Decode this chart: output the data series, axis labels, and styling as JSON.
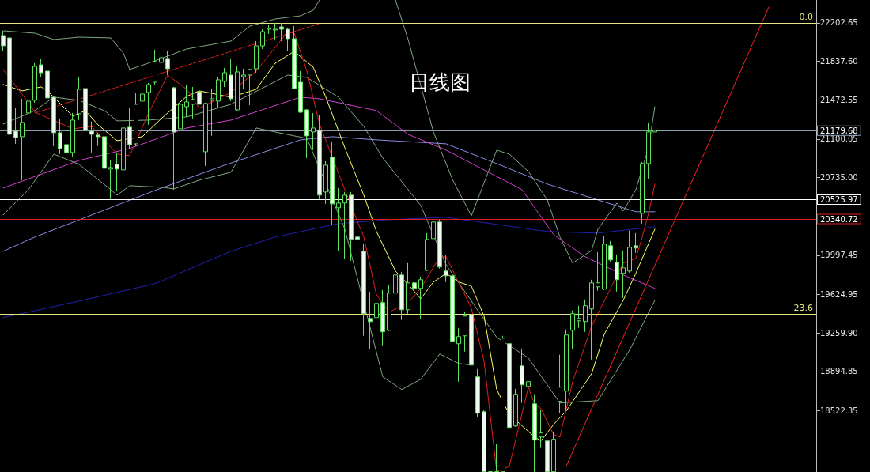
{
  "chart_data": {
    "type": "candlestick",
    "title": "日线图",
    "color": "#5fe35f",
    "tick_labels": "y",
    "categories": [
      null,
      null,
      null,
      null,
      null,
      null,
      null,
      null,
      null,
      null,
      null,
      null,
      null,
      null,
      null,
      null,
      null,
      null,
      null,
      null,
      null,
      null,
      null,
      null,
      null,
      null,
      null,
      null,
      null,
      null,
      null,
      null,
      null,
      null,
      null,
      null,
      null,
      null,
      null,
      null,
      null,
      null,
      null,
      null,
      null,
      null,
      null,
      null,
      null,
      null,
      null,
      null,
      null,
      null,
      null,
      null,
      null,
      null,
      null,
      null,
      null,
      null,
      null,
      null,
      null,
      null,
      null,
      null,
      null,
      null,
      null,
      null,
      null,
      null,
      null,
      null,
      null,
      null,
      null,
      null,
      null,
      null,
      null,
      null,
      null,
      null,
      null,
      null,
      null,
      null,
      null,
      null,
      null,
      null,
      null,
      null,
      null,
      null,
      null,
      null,
      null,
      null,
      null,
      null,
      null,
      null,
      null,
      null,
      null,
      null,
      null,
      null,
      null,
      null,
      null,
      null,
      null,
      null,
      null,
      null,
      null,
      null,
      null,
      null,
      null,
      null,
      null,
      null,
      null
    ],
    "ohlc": [
      [
        22082.5,
        22127.5,
        21932.5,
        21985
      ],
      [
        22060,
        22060,
        20995,
        21145
      ],
      [
        21175,
        21392.5,
        21055,
        21115
      ],
      [
        21122.5,
        21482.5,
        20710,
        21257.5
      ],
      [
        21347.5,
        21505,
        21197.5,
        21460
      ],
      [
        21467.5,
        21820,
        21445,
        21790
      ],
      [
        21805,
        21857.5,
        21685,
        21730
      ],
      [
        21745,
        21767.5,
        21272.5,
        21490
      ],
      [
        21497.5,
        21505,
        21032.5,
        21160
      ],
      [
        21160,
        21295,
        20957.5,
        21010
      ],
      [
        21047.5,
        21242.5,
        20770,
        20972.5
      ],
      [
        20972.5,
        21347.5,
        20935,
        21280
      ],
      [
        21340,
        21692.5,
        21280,
        21572.5
      ],
      [
        21580,
        21617.5,
        21092.5,
        21182.5
      ],
      [
        21175,
        21265,
        20972.5,
        21145
      ],
      [
        21137.5,
        21160,
        21032.5,
        21122.5
      ],
      [
        21122.5,
        21152.5,
        20695,
        20822.5
      ],
      [
        20815,
        20897.5,
        20530,
        20830
      ],
      [
        20860,
        20972.5,
        20605,
        20815
      ],
      [
        20807.5,
        21280,
        20755,
        21205
      ],
      [
        21212.5,
        21392.5,
        21010,
        21047.5
      ],
      [
        21055,
        21535,
        21032.5,
        21430
      ],
      [
        21460,
        21617.5,
        21370,
        21527.5
      ],
      [
        21542.5,
        21632.5,
        21235,
        21617.5
      ],
      [
        21640,
        21947.5,
        21617.5,
        21835
      ],
      [
        21827.5,
        21910,
        21707.5,
        21872.5
      ],
      [
        21865,
        21940,
        21707.5,
        21767.5
      ],
      [
        21587.5,
        21595,
        20620,
        21167.5
      ],
      [
        21197.5,
        21497.5,
        21032.5,
        21430
      ],
      [
        21407.5,
        21617.5,
        21310,
        21452.5
      ],
      [
        21430,
        21595,
        21295,
        21475
      ],
      [
        21550,
        21842.5,
        21347.5,
        21430
      ],
      [
        20980,
        21445,
        20845,
        21437.5
      ],
      [
        21467.5,
        21580,
        21130,
        21482.5
      ],
      [
        21460,
        21685,
        21392.5,
        21662.5
      ],
      [
        21647.5,
        21775,
        21595,
        21730
      ],
      [
        21707.5,
        21865,
        21460,
        21482.5
      ],
      [
        21377.5,
        21790,
        21370,
        21737.5
      ],
      [
        21692.5,
        21767.5,
        21572.5,
        21707.5
      ],
      [
        21707.5,
        21767.5,
        21422.5,
        21760
      ],
      [
        21767.5,
        22030,
        21730,
        21985
      ],
      [
        21985,
        22142.5,
        21955,
        22120
      ],
      [
        22142.5,
        22187.5,
        22097.5,
        22150
      ],
      [
        22135,
        22202.5,
        22045,
        22142.5
      ],
      [
        22165,
        22202.5,
        22030,
        22142.5
      ],
      [
        22142.5,
        22157.5,
        21932.5,
        22052.5
      ],
      [
        22052.5,
        22172.5,
        21572.5,
        21580
      ],
      [
        21640,
        21745,
        21347.5,
        21355
      ],
      [
        21377.5,
        21385,
        20920,
        21130
      ],
      [
        21167.5,
        21347.5,
        20995,
        21205
      ],
      [
        21182.5,
        21325,
        20530,
        20567.5
      ],
      [
        20597.5,
        20890,
        20485,
        20852.5
      ],
      [
        20927.5,
        21070,
        20282.5,
        20485
      ],
      [
        20447.5,
        20635,
        20035,
        20492.5
      ],
      [
        20492.5,
        20597.5,
        19960,
        20567.5
      ],
      [
        20567.5,
        20597.5,
        19945,
        20147.5
      ],
      [
        20170,
        20245,
        19720,
        20147.5
      ],
      [
        20035,
        20110,
        19232.5,
        19442.5
      ],
      [
        19397.5,
        19652.5,
        19105,
        19367.5
      ],
      [
        19405,
        19645,
        19360,
        19540
      ],
      [
        19547.5,
        19667.5,
        19142.5,
        19270
      ],
      [
        19285,
        19712.5,
        19277.5,
        19637.5
      ],
      [
        19637.5,
        19930,
        19457.5,
        19810
      ],
      [
        19810,
        19840,
        19382.5,
        19480
      ],
      [
        19480,
        19922.5,
        19442.5,
        19735
      ],
      [
        19735,
        19892.5,
        19517.5,
        19682.5
      ],
      [
        19682.5,
        19795,
        19397.5,
        19765
      ],
      [
        19855,
        20207.5,
        19847.5,
        20147.5
      ],
      [
        20155,
        20327.5,
        20095,
        20312.5
      ],
      [
        20312.5,
        20335,
        19870,
        19885
      ],
      [
        19847.5,
        19997.5,
        19742.5,
        19802.5
      ],
      [
        19802.5,
        19817.5,
        19172.5,
        19180
      ],
      [
        19157.5,
        19307.5,
        18797.5,
        19225
      ],
      [
        19232.5,
        19457.5,
        19082.5,
        19420
      ],
      [
        19427.5,
        19870,
        18947.5,
        18955
      ],
      [
        18842.5,
        18917.5,
        18460,
        18497.5
      ],
      [
        18512.5,
        18527.5,
        17942.5,
        17942.5
      ],
      [
        17942.5,
        18220,
        17942.5,
        17942.5
      ],
      [
        17942.5,
        18205,
        17942.5,
        17942.5
      ],
      [
        17942.5,
        19232.5,
        17942.5,
        19210
      ],
      [
        19157.5,
        19232.5,
        17942.5,
        18362.5
      ],
      [
        18377.5,
        18730,
        18370,
        18677.5
      ],
      [
        18947.5,
        19112.5,
        18595,
        18767.5
      ],
      [
        18752.5,
        19015,
        18595,
        18797.5
      ],
      [
        18587.5,
        18677.5,
        17942.5,
        18242.5
      ],
      [
        18272.5,
        18527.5,
        18167.5,
        18310
      ],
      [
        18235,
        18242.5,
        17942.5,
        17942.5
      ],
      [
        17942.5,
        18317.5,
        17942.5,
        18250
      ],
      [
        18610,
        19052.5,
        18497.5,
        18745
      ],
      [
        18707.5,
        19292.5,
        18520,
        19240
      ],
      [
        19285,
        19472.5,
        19105,
        19442.5
      ],
      [
        19375,
        19517.5,
        19307.5,
        19397.5
      ],
      [
        19367.5,
        19577.5,
        19270,
        19517.5
      ],
      [
        19487.5,
        19765,
        19007.5,
        19735
      ],
      [
        19697.5,
        20027.5,
        19660,
        19735
      ],
      [
        19675,
        20177.5,
        19667.5,
        20102.5
      ],
      [
        20087.5,
        20132.5,
        19930,
        19952.5
      ],
      [
        19930,
        20005,
        19652.5,
        19765
      ],
      [
        19825,
        20042.5,
        19592.5,
        19877.5
      ],
      [
        19847.5,
        20230,
        19832.5,
        20072.5
      ],
      [
        20087.5,
        20207.5,
        20020,
        20065
      ],
      [
        20395,
        20882.5,
        20297.5,
        20867.5
      ],
      [
        20867.5,
        21257.5,
        20725,
        21167.5
      ],
      [
        21167.5,
        21190,
        21167.5,
        21182.5
      ],
      null,
      null,
      null,
      null,
      null,
      null,
      null,
      null,
      null,
      null,
      null,
      null,
      null,
      null,
      null,
      null,
      null,
      null,
      null,
      null,
      null,
      null,
      null,
      null,
      null
    ],
    "series": [
      {
        "type": "line",
        "color": "#8a8ae6",
        "values": [
          20035,
          null,
          null,
          null,
          null,
          20170,
          null,
          null,
          null,
          null,
          null,
          null,
          null,
          null,
          null,
          null,
          null,
          null,
          null,
          null,
          null,
          null,
          null,
          null,
          20612.5,
          null,
          null,
          null,
          null,
          null,
          null,
          null,
          null,
          null,
          null,
          20852.5,
          null,
          null,
          null,
          null,
          null,
          null,
          null,
          null,
          null,
          null,
          null,
          21092.5,
          null,
          null,
          null,
          null,
          21122.5,
          null,
          null,
          null,
          null,
          null,
          null,
          21092.5,
          null,
          null,
          null,
          null,
          null,
          null,
          null,
          null,
          null,
          null,
          21055,
          null,
          null,
          null,
          null,
          null,
          null,
          null,
          20867.5,
          null,
          null,
          null,
          null,
          null,
          null,
          null,
          20672.5,
          null,
          null,
          null,
          null,
          null,
          null,
          null,
          20522.5,
          null,
          null,
          null,
          null,
          null,
          20410,
          null,
          null,
          20410,
          null,
          null,
          null,
          null,
          null,
          null,
          null,
          null,
          null,
          null,
          null,
          null,
          null,
          null,
          null,
          null,
          null,
          null,
          null,
          null,
          null,
          null,
          null,
          null,
          null
        ]
      },
      {
        "type": "line",
        "color": "#2020b0",
        "values": [
          19405,
          null,
          null,
          null,
          null,
          null,
          null,
          null,
          null,
          null,
          null,
          null,
          19562.5,
          null,
          null,
          null,
          null,
          null,
          null,
          null,
          null,
          null,
          null,
          null,
          19727.5,
          null,
          null,
          null,
          null,
          null,
          null,
          null,
          null,
          null,
          null,
          null,
          20035,
          null,
          null,
          null,
          null,
          null,
          null,
          20170,
          null,
          null,
          null,
          null,
          null,
          null,
          null,
          null,
          null,
          20297.5,
          null,
          null,
          null,
          null,
          null,
          null,
          null,
          20335,
          null,
          null,
          null,
          null,
          null,
          null,
          null,
          null,
          20357.5,
          null,
          null,
          null,
          null,
          null,
          null,
          null,
          null,
          null,
          null,
          null,
          null,
          null,
          null,
          null,
          20222.5,
          null,
          null,
          null,
          null,
          null,
          null,
          null,
          20207.5,
          null,
          null,
          null,
          null,
          null,
          null,
          null,
          null,
          20267.5,
          null,
          null,
          null,
          null,
          null,
          null,
          null,
          null,
          null,
          null,
          null,
          null,
          null,
          null,
          null,
          null,
          null,
          null,
          null,
          null,
          null,
          null,
          null,
          null,
          null
        ]
      },
      {
        "type": "line",
        "color": "#d040d0",
        "values": [
          20635,
          null,
          null,
          null,
          null,
          null,
          null,
          null,
          null,
          null,
          null,
          null,
          20897.5,
          null,
          null,
          null,
          null,
          null,
          null,
          null,
          21010,
          null,
          null,
          null,
          null,
          null,
          null,
          null,
          null,
          21205,
          null,
          null,
          null,
          null,
          null,
          null,
          21280,
          null,
          null,
          null,
          null,
          null,
          null,
          null,
          null,
          null,
          null,
          21497.5,
          null,
          null,
          21482.5,
          null,
          null,
          null,
          null,
          null,
          null,
          null,
          null,
          21370,
          null,
          null,
          null,
          null,
          21145,
          null,
          null,
          null,
          null,
          null,
          20995,
          null,
          null,
          null,
          null,
          null,
          null,
          null,
          null,
          null,
          null,
          null,
          20620,
          null,
          null,
          null,
          null,
          20192.5,
          null,
          null,
          null,
          null,
          19982.5,
          null,
          null,
          null,
          null,
          null,
          19810,
          null,
          null,
          null,
          null,
          19682.5,
          null,
          null,
          null,
          null,
          null,
          null,
          null,
          null,
          null,
          null,
          null,
          null,
          null,
          null,
          null,
          null,
          null,
          null,
          null,
          null,
          null,
          null,
          null,
          null,
          null
        ]
      },
      {
        "type": "line",
        "color": "#7fa87f",
        "values": [
          22127.5,
          null,
          null,
          null,
          null,
          22105,
          null,
          null,
          22045,
          null,
          null,
          null,
          22067.5,
          null,
          null,
          null,
          null,
          22060,
          null,
          21917.5,
          21760,
          null,
          null,
          null,
          21842.5,
          null,
          null,
          null,
          null,
          21955,
          null,
          null,
          null,
          null,
          null,
          null,
          22030,
          null,
          null,
          22172.5,
          null,
          null,
          null,
          22240,
          null,
          null,
          null,
          22270,
          null,
          22322.5,
          22420,
          null,
          null,
          null,
          null,
          null,
          null,
          null,
          null,
          null,
          null,
          null,
          null,
          null,
          null,
          null,
          null,
          null,
          null,
          null,
          null,
          null,
          null,
          null,
          null,
          null,
          null,
          null,
          null,
          null,
          null,
          null,
          null,
          null,
          null,
          null,
          null,
          null,
          null,
          null,
          null,
          null,
          null,
          null,
          null,
          null,
          null,
          null,
          null,
          null,
          null,
          null,
          null,
          null,
          null,
          null,
          null,
          null,
          null,
          null,
          null,
          null,
          null,
          null,
          null,
          null,
          null,
          null,
          null,
          null,
          null,
          null,
          null,
          null,
          null,
          null,
          null,
          null,
          null
        ]
      },
      {
        "type": "line",
        "color": "#7fa87f",
        "values": [
          null,
          null,
          null,
          null,
          null,
          null,
          null,
          null,
          null,
          null,
          null,
          null,
          null,
          null,
          null,
          null,
          null,
          null,
          null,
          null,
          null,
          null,
          null,
          null,
          null,
          null,
          null,
          null,
          null,
          null,
          null,
          null,
          null,
          null,
          null,
          null,
          null,
          null,
          null,
          null,
          null,
          null,
          null,
          null,
          null,
          null,
          null,
          null,
          null,
          null,
          null,
          null,
          null,
          null,
          null,
          null,
          null,
          null,
          null,
          null,
          null,
          null,
          22420,
          null,
          22045,
          null,
          null,
          null,
          21167.5,
          null,
          null,
          20717.5,
          null,
          null,
          20372.5,
          null,
          null,
          null,
          20995,
          null,
          20957.5,
          null,
          null,
          20792.5,
          null,
          null,
          20522.5,
          null,
          20170,
          null,
          19922.5,
          null,
          null,
          20042.5,
          20245,
          null,
          null,
          20492.5,
          20417.5,
          null,
          20620,
          null,
          21017.5,
          21407.5,
          null,
          null,
          null,
          null,
          null,
          null,
          null,
          null,
          null,
          null,
          null,
          null,
          null,
          null,
          null,
          null,
          null,
          null,
          null,
          null,
          null,
          null,
          null,
          null,
          null
        ]
      },
      {
        "type": "line",
        "color": "#7fa87f",
        "values": [
          21242.5,
          null,
          null,
          null,
          null,
          21370,
          null,
          null,
          21497.5,
          null,
          null,
          null,
          21467.5,
          null,
          null,
          null,
          21370,
          null,
          21272.5,
          null,
          null,
          null,
          null,
          21280,
          null,
          null,
          null,
          null,
          null,
          21310,
          null,
          null,
          null,
          null,
          null,
          null,
          21430,
          null,
          null,
          null,
          null,
          null,
          null,
          null,
          null,
          21707.5,
          null,
          null,
          21685,
          null,
          null,
          null,
          null,
          21497.5,
          null,
          null,
          null,
          21220,
          null,
          null,
          20920,
          null,
          null,
          null,
          null,
          null,
          20470,
          null,
          null,
          null,
          19907.5,
          null,
          null,
          null,
          null,
          null,
          null,
          null,
          19217.5,
          null,
          null,
          null,
          null,
          19022.5,
          null,
          null,
          null,
          null,
          18595,
          null,
          null,
          null,
          null,
          null,
          18617.5,
          null,
          null,
          null,
          null,
          19097.5,
          null,
          null,
          null,
          19570,
          null,
          null,
          null,
          null,
          null,
          null,
          null,
          null,
          null,
          null,
          null,
          null,
          null,
          null,
          null,
          null,
          null,
          null,
          null,
          null,
          null,
          null,
          null,
          null,
          null
        ]
      },
      {
        "type": "line",
        "color": "#7fa87f",
        "values": [
          20380,
          null,
          null,
          null,
          20620,
          null,
          null,
          null,
          20957.5,
          null,
          null,
          null,
          20860,
          null,
          null,
          null,
          null,
          20620,
          20567.5,
          null,
          20657.5,
          null,
          null,
          null,
          null,
          20642.5,
          null,
          20627.5,
          null,
          null,
          null,
          20710,
          null,
          null,
          null,
          null,
          20785,
          null,
          null,
          null,
          21205,
          null,
          null,
          null,
          null,
          null,
          21130,
          null,
          21107.5,
          null,
          null,
          null,
          null,
          null,
          20245,
          null,
          null,
          null,
          null,
          null,
          18842.5,
          null,
          null,
          18722.5,
          null,
          null,
          18820,
          null,
          null,
          19060,
          null,
          null,
          18970,
          null,
          18955,
          null,
          null,
          null,
          null,
          null,
          null,
          null,
          null,
          null,
          null,
          null,
          null,
          null,
          null,
          null,
          null,
          null,
          null,
          null,
          null,
          null,
          null,
          null,
          null,
          null,
          null,
          null,
          null,
          null,
          null,
          null,
          null,
          null,
          null,
          null,
          null,
          null,
          null,
          null,
          null,
          null,
          null,
          null,
          null,
          null,
          null,
          null,
          null,
          null,
          null,
          null,
          null,
          null,
          null
        ]
      },
      {
        "type": "line",
        "color": "#ffff66",
        "values": [
          21617.5,
          null,
          null,
          21557.5,
          null,
          null,
          21595,
          21557.5,
          null,
          null,
          null,
          21317.5,
          null,
          21370,
          null,
          21235,
          null,
          null,
          21085,
          null,
          null,
          null,
          21122.5,
          null,
          null,
          21295,
          null,
          null,
          null,
          21505,
          null,
          21557.5,
          null,
          null,
          null,
          null,
          21497.5,
          null,
          null,
          null,
          21572.5,
          null,
          null,
          21820,
          null,
          null,
          21932.5,
          null,
          null,
          21782.5,
          null,
          21497.5,
          null,
          null,
          21017.5,
          null,
          null,
          20567.5,
          null,
          20222.5,
          null,
          null,
          19847.5,
          null,
          19720,
          null,
          19585,
          null,
          19742.5,
          null,
          19825,
          null,
          19742.5,
          null,
          19705,
          null,
          19420,
          null,
          18722.5,
          null,
          18485,
          null,
          null,
          null,
          18272.5,
          18235,
          null,
          18392.5,
          null,
          18520,
          null,
          null,
          null,
          18872.5,
          null,
          19247.5,
          null,
          null,
          19570,
          null,
          19827.5,
          null,
          null,
          20245,
          null,
          null,
          null,
          null,
          null,
          null,
          null,
          null,
          null,
          null,
          null,
          null,
          null,
          null,
          null,
          null,
          null,
          null,
          null,
          null,
          null,
          null,
          null,
          null,
          null
        ]
      },
      {
        "type": "line",
        "color": "#e02020",
        "values": [
          21760,
          null,
          null,
          null,
          21445,
          21355,
          null,
          null,
          null,
          null,
          null,
          21197.5,
          null,
          null,
          21220,
          null,
          null,
          null,
          20957.5,
          null,
          20942.5,
          null,
          null,
          21347.5,
          null,
          null,
          21707.5,
          null,
          null,
          21572.5,
          null,
          21392.5,
          null,
          null,
          null,
          null,
          21542.5,
          null,
          null,
          null,
          21745,
          null,
          null,
          null,
          null,
          22120,
          22105,
          null,
          21745,
          null,
          21242.5,
          null,
          null,
          null,
          20620,
          null,
          null,
          20170,
          null,
          19622.5,
          null,
          19457.5,
          null,
          null,
          19547.5,
          null,
          19682.5,
          null,
          null,
          19982.5,
          19982.5,
          null,
          null,
          null,
          19495,
          null,
          18992.5,
          null,
          17942.5,
          null,
          17995,
          null,
          null,
          18745,
          18580,
          18542.5,
          null,
          18295,
          18272.5,
          null,
          18797.5,
          null,
          null,
          19322.5,
          null,
          null,
          null,
          null,
          19922.5,
          null,
          19967.5,
          20170,
          20395,
          20672.5,
          null,
          null,
          null,
          null,
          null,
          null,
          null,
          null,
          null,
          null,
          null,
          null,
          null,
          null,
          null,
          null,
          null,
          null,
          null,
          null,
          null,
          null,
          null,
          null,
          null
        ]
      },
      {
        "type": "line",
        "color": "#e02020",
        "line_style": "dashed",
        "values": [
          null,
          null,
          null,
          null,
          null,
          21347.5,
          null,
          null,
          null,
          null,
          null,
          null,
          null,
          null,
          null,
          null,
          null,
          null,
          null,
          null,
          null,
          null,
          null,
          null,
          null,
          null,
          null,
          null,
          null,
          null,
          null,
          null,
          null,
          null,
          null,
          null,
          null,
          null,
          null,
          null,
          null,
          null,
          null,
          null,
          null,
          null,
          null,
          null,
          null,
          null,
          22195,
          null,
          null,
          null,
          null,
          null,
          null,
          null,
          null,
          null,
          null,
          null,
          null,
          null,
          null,
          null,
          null,
          null,
          null,
          null,
          null,
          null,
          null,
          null,
          null,
          null,
          null,
          null,
          null,
          null,
          null,
          null,
          null,
          null,
          null,
          null,
          null,
          null,
          null,
          null,
          null,
          null,
          null,
          null,
          null,
          null,
          null,
          null,
          null,
          null,
          null,
          null,
          null,
          null,
          null,
          null,
          null,
          null,
          null,
          null,
          null,
          null,
          null,
          null,
          null,
          null,
          null,
          null,
          null,
          null,
          null,
          null,
          null,
          null,
          null,
          null,
          null,
          null,
          null
        ]
      },
      {
        "type": "line",
        "color": "#ff2020",
        "values": [
          null,
          null,
          null,
          null,
          null,
          null,
          null,
          null,
          null,
          null,
          null,
          null,
          null,
          null,
          null,
          null,
          null,
          null,
          null,
          null,
          null,
          null,
          null,
          null,
          null,
          null,
          null,
          null,
          null,
          null,
          null,
          null,
          null,
          null,
          null,
          null,
          null,
          null,
          null,
          null,
          null,
          null,
          null,
          null,
          null,
          null,
          null,
          null,
          null,
          null,
          null,
          null,
          null,
          null,
          null,
          null,
          null,
          null,
          null,
          null,
          null,
          null,
          null,
          null,
          null,
          null,
          null,
          null,
          null,
          null,
          null,
          null,
          null,
          null,
          null,
          null,
          null,
          null,
          null,
          null,
          null,
          null,
          null,
          null,
          null,
          null,
          null,
          null,
          null,
          17995,
          null,
          null,
          null,
          null,
          null,
          null,
          null,
          null,
          null,
          null,
          null,
          null,
          null,
          null,
          null,
          null,
          null,
          null,
          null,
          null,
          null,
          null,
          null,
          null,
          null,
          null,
          null,
          null,
          null,
          null,
          null,
          22352.5,
          null,
          null,
          null,
          null,
          null,
          null,
          null
        ]
      }
    ],
    "ylim": [
      17940,
      22420
    ],
    "yticks": [
      22202.65,
      {
        "value": 21837.6,
        "label": "21837.60"
      },
      21472.55,
      21100.05,
      {
        "value": 20735,
        "label": "20735.00"
      },
      19997.45,
      19624.95,
      {
        "value": 19259.9,
        "label": "19259.90"
      },
      18894.85,
      18522.35
    ],
    "ref_lines": [
      {
        "axis": "y",
        "value": 22202.65,
        "color": "#e6e680"
      },
      {
        "axis": "y",
        "value": 19442.5,
        "color": "#e6e680"
      },
      {
        "axis": "y",
        "value": 21179.68,
        "label": "21179.68",
        "color": "#8a9cae"
      },
      {
        "axis": "y",
        "value": 20525.97,
        "label": "20525.97",
        "color": "#ffffff"
      },
      {
        "axis": "y",
        "value": 20340.72,
        "label": "20340.72",
        "color": "#e02020"
      }
    ],
    "annotations": [
      {
        "text": "0.0",
        "y": 22202.65
      },
      {
        "text": "23.6",
        "y": 19442.5
      }
    ]
  }
}
